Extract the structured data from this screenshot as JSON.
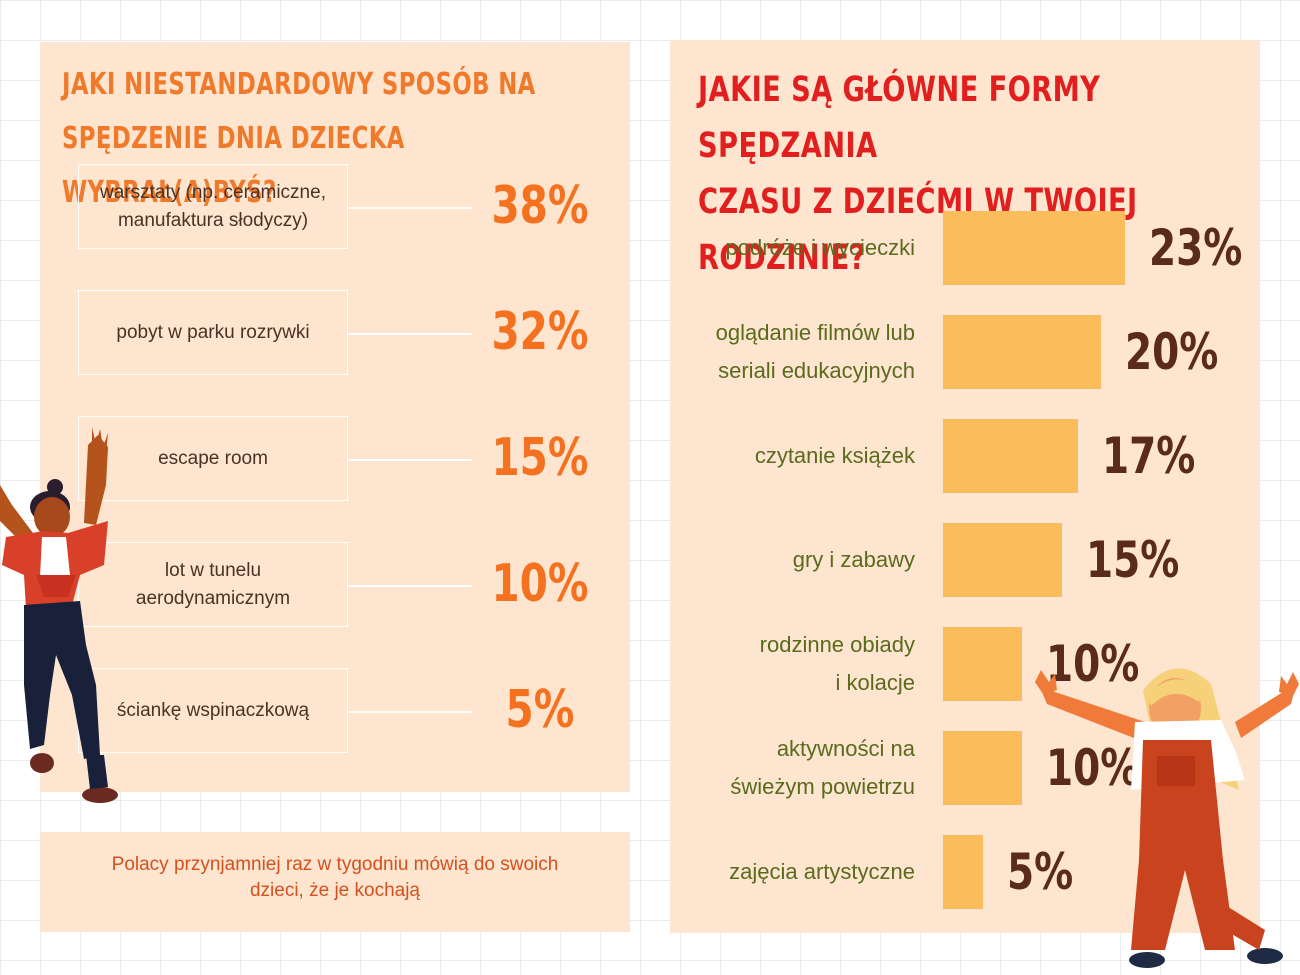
{
  "left": {
    "title_line1": "JAKI NIESTANDARDOWY SPOSÓB NA",
    "title_line2": "SPĘDZENIE DNIA DZIECKA WYBRAŁ(A)BYŚ?",
    "options": [
      {
        "line1": "warsztaty (np. ceramiczne,",
        "line2": "manufaktura słodyczy)",
        "value": "38%"
      },
      {
        "line1": "pobyt w parku rozrywki",
        "line2": "",
        "value": "32%"
      },
      {
        "line1": "escape room",
        "line2": "",
        "value": "15%"
      },
      {
        "line1": "lot w tunelu",
        "line2": "aerodynamicznym",
        "value": "10%"
      },
      {
        "line1": "ściankę wspinaczkową",
        "line2": "",
        "value": "5%"
      }
    ]
  },
  "note": {
    "line1": "Polacy przynjamniej raz w tygodniu mówią do swoich",
    "line2": "dzieci, że je kochają"
  },
  "right": {
    "title_line1": "JAKIE SĄ GŁÓWNE FORMY SPĘDZANIA",
    "title_line2": "CZASU Z DZIEĆMI W TWOJEJ RODZINIE?"
  },
  "chart_data": {
    "type": "bar",
    "orientation": "horizontal",
    "title": "JAKIE SĄ GŁÓWNE FORMY SPĘDZANIA CZASU Z DZIEĆMI W TWOJEJ RODZINIE?",
    "categories": [
      {
        "line1": "podróże i wycieczki",
        "line2": ""
      },
      {
        "line1": "oglądanie filmów lub",
        "line2": "seriali edukacyjnych"
      },
      {
        "line1": "czytanie książek",
        "line2": ""
      },
      {
        "line1": "gry i zabawy",
        "line2": ""
      },
      {
        "line1": "rodzinne obiady",
        "line2": "i kolacje"
      },
      {
        "line1": "aktywności na",
        "line2": "świeżym powietrzu"
      },
      {
        "line1": "zajęcia artystyczne",
        "line2": ""
      }
    ],
    "values": [
      23,
      20,
      17,
      15,
      10,
      10,
      5
    ],
    "value_labels": [
      "23%",
      "20%",
      "17%",
      "15%",
      "10%",
      "10%",
      "5%"
    ],
    "xlim": [
      0,
      23
    ],
    "grid": false,
    "colors": {
      "bar": "#fbbd5b",
      "label": "#5a6b1e",
      "value": "#5a2a1a"
    }
  },
  "colors": {
    "panel": "#fde5cf",
    "left_title": "#f07a2b",
    "right_title": "#e21f1f",
    "percent": "#f47120"
  },
  "illustrations": [
    "girl-with-ponytail-cheering-icon",
    "blonde-girl-in-overalls-cheering-icon"
  ]
}
